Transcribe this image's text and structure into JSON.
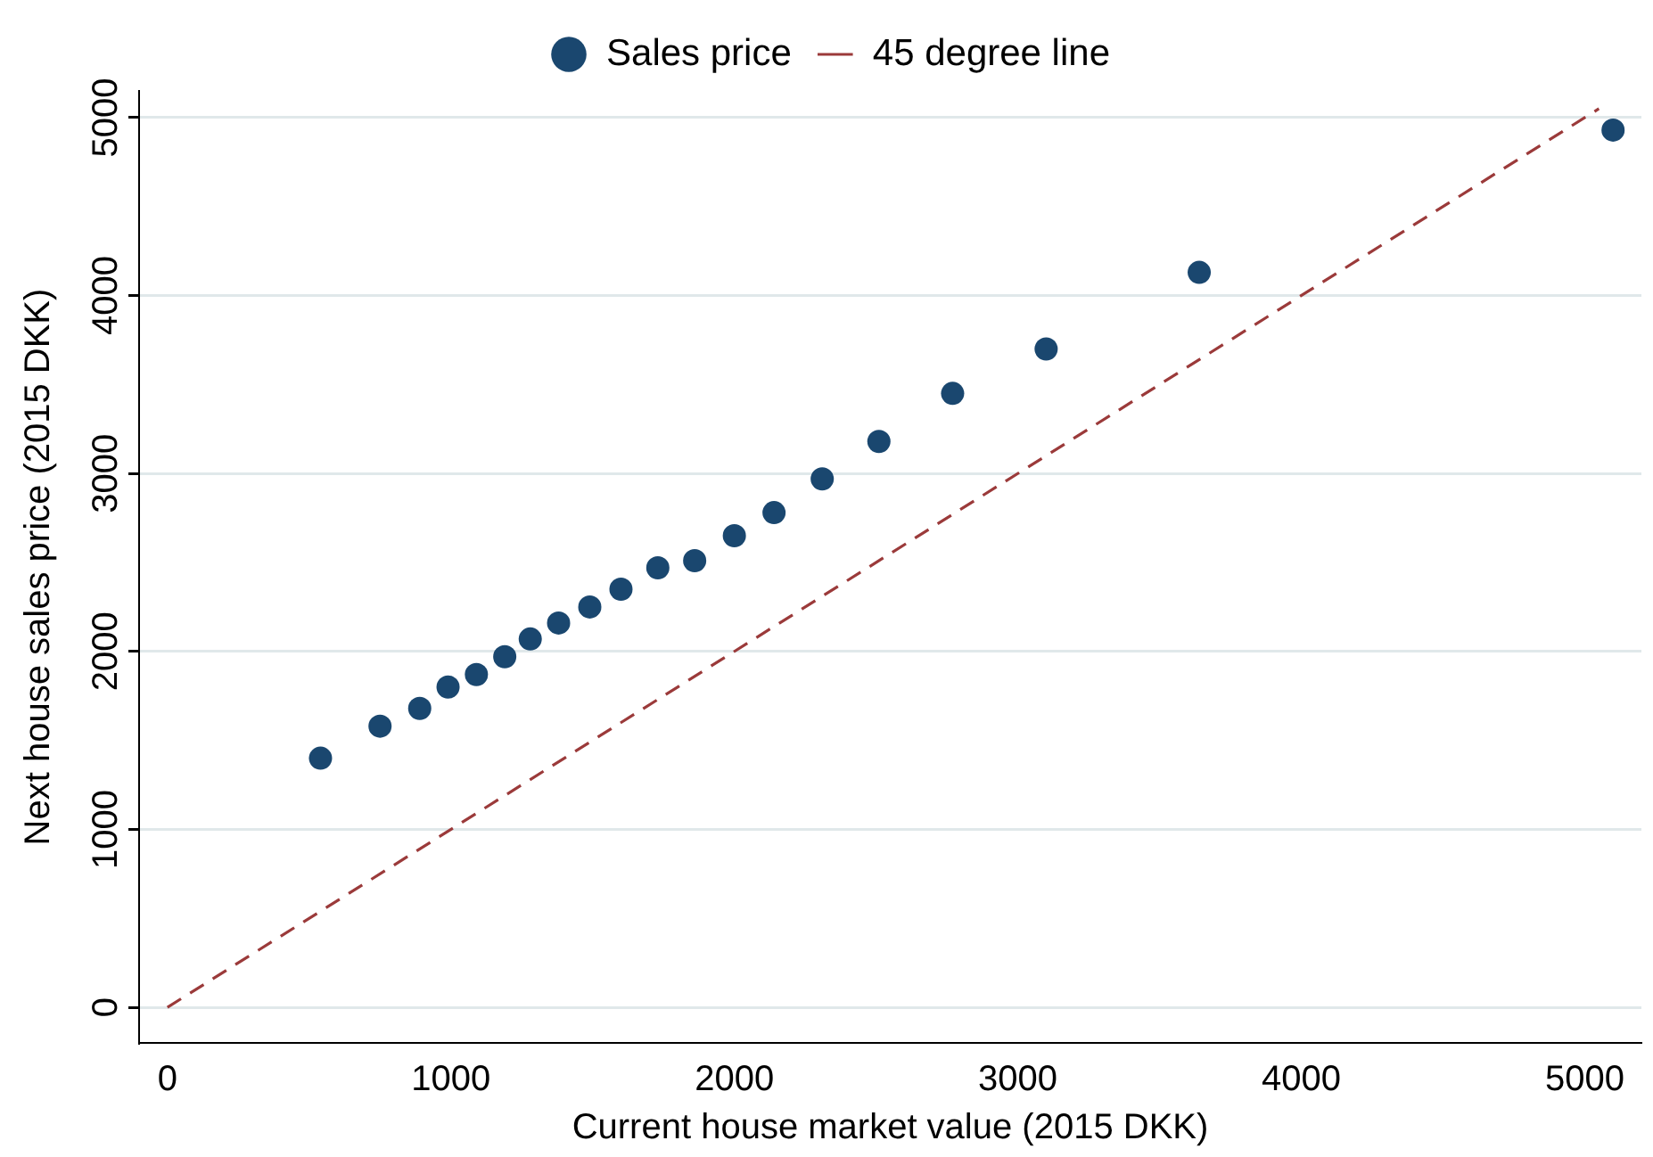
{
  "chart_data": {
    "type": "scatter",
    "xlabel": "Current house market value (2015 DKK)",
    "ylabel": "Next house sales price (2015 DKK)",
    "xlim": [
      -100,
      5200
    ],
    "ylim": [
      -200,
      5150
    ],
    "xticks": [
      0,
      1000,
      2000,
      3000,
      4000,
      5000
    ],
    "yticks": [
      0,
      1000,
      2000,
      3000,
      4000,
      5000
    ],
    "grid": "y",
    "legend": "top",
    "series": [
      {
        "name": "Sales price",
        "marker": "circle",
        "color": "#1a476f",
        "x": [
          540,
          750,
          890,
          990,
          1090,
          1190,
          1280,
          1380,
          1490,
          1600,
          1730,
          1860,
          2000,
          2140,
          2310,
          2510,
          2770,
          3100,
          3640,
          5100
        ],
        "values": [
          1400,
          1580,
          1680,
          1800,
          1870,
          1970,
          2070,
          2160,
          2250,
          2350,
          2470,
          2510,
          2650,
          2780,
          2970,
          3180,
          3450,
          3700,
          4130,
          4930
        ]
      },
      {
        "name": "45 degree line",
        "type": "line",
        "marker": "none",
        "color": "#9b3a3a",
        "line_style": "dashed",
        "x": [
          0,
          5050
        ],
        "values": [
          0,
          5050
        ]
      }
    ]
  }
}
